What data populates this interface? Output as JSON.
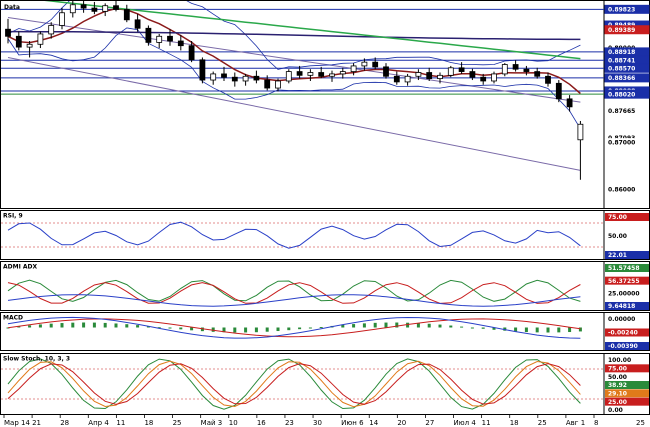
{
  "chart_data": {
    "type": "candlestick-multipanel",
    "x_tick_labels": [
      "Мар 14",
      "21",
      "28",
      "Апр 4",
      "11",
      "18",
      "25",
      "Май 3",
      "10",
      "16",
      "23",
      "30",
      "Июн 6",
      "14",
      "20",
      "27",
      "Июл 4",
      "11",
      "18",
      "25",
      "Авг 1",
      "8"
    ],
    "price": {
      "title": "Data",
      "price_labels": [
        {
          "text": "0.89823",
          "value": 0.89823,
          "color": "#1a2fa8"
        },
        {
          "text": "0.89489",
          "value": 0.89489,
          "color": "#1a2fa8"
        },
        {
          "text": "0.89389",
          "value": 0.89389,
          "color": "#c81e1e"
        },
        {
          "text": "0.89000",
          "value": 0.89,
          "color": "#ffffff"
        },
        {
          "text": "0.88918",
          "value": 0.88918,
          "color": "#1a2fa8"
        },
        {
          "text": "0.88741",
          "value": 0.88741,
          "color": "#1a2fa8"
        },
        {
          "text": "0.88570",
          "value": 0.8857,
          "color": "#1a2fa8"
        },
        {
          "text": "0.88366",
          "value": 0.88366,
          "color": "#1a2fa8"
        },
        {
          "text": "0.88088",
          "value": 0.88088,
          "color": "#1a2fa8"
        },
        {
          "text": "0.88020",
          "value": 0.8802,
          "color": "#1a2fa8"
        },
        {
          "text": "0.87665",
          "value": 0.87665,
          "color": "#ffffff"
        },
        {
          "text": "0.87093",
          "value": 0.87093,
          "color": "#ffffff"
        },
        {
          "text": "0.87000",
          "value": 0.87,
          "color": "#ffffff"
        },
        {
          "text": "0.86000",
          "value": 0.86,
          "color": "#ffffff"
        }
      ],
      "levels": [
        {
          "value": 0.89823,
          "color": "#1a2fa8"
        },
        {
          "value": 0.88918,
          "color": "#1a2fa8"
        },
        {
          "value": 0.88741,
          "color": "#1a2fa8"
        },
        {
          "value": 0.8857,
          "color": "#1a2fa8"
        },
        {
          "value": 0.88366,
          "color": "#1a2fa8"
        },
        {
          "value": 0.88088,
          "color": "#1a2fa8"
        },
        {
          "value": 0.8802,
          "color": "#2a8a3a"
        }
      ],
      "ylim": [
        0.856,
        0.9
      ],
      "candles": [
        {
          "o": 0.894,
          "h": 0.8962,
          "l": 0.891,
          "c": 0.8925
        },
        {
          "o": 0.8925,
          "h": 0.8935,
          "l": 0.8895,
          "c": 0.8902
        },
        {
          "o": 0.8902,
          "h": 0.8915,
          "l": 0.888,
          "c": 0.8908
        },
        {
          "o": 0.8908,
          "h": 0.8935,
          "l": 0.89,
          "c": 0.893
        },
        {
          "o": 0.893,
          "h": 0.8955,
          "l": 0.892,
          "c": 0.8948
        },
        {
          "o": 0.8948,
          "h": 0.8985,
          "l": 0.894,
          "c": 0.8975
        },
        {
          "o": 0.8975,
          "h": 0.9,
          "l": 0.8965,
          "c": 0.8992
        },
        {
          "o": 0.8992,
          "h": 0.9,
          "l": 0.8975,
          "c": 0.8985
        },
        {
          "o": 0.8985,
          "h": 0.8998,
          "l": 0.8972,
          "c": 0.8978
        },
        {
          "o": 0.8978,
          "h": 0.8995,
          "l": 0.8968,
          "c": 0.899
        },
        {
          "o": 0.899,
          "h": 0.9,
          "l": 0.8978,
          "c": 0.8982
        },
        {
          "o": 0.8982,
          "h": 0.8992,
          "l": 0.8955,
          "c": 0.896
        },
        {
          "o": 0.896,
          "h": 0.8972,
          "l": 0.8935,
          "c": 0.8942
        },
        {
          "o": 0.8942,
          "h": 0.8948,
          "l": 0.8905,
          "c": 0.8912
        },
        {
          "o": 0.8912,
          "h": 0.893,
          "l": 0.89,
          "c": 0.8925
        },
        {
          "o": 0.8925,
          "h": 0.894,
          "l": 0.8905,
          "c": 0.8915
        },
        {
          "o": 0.8915,
          "h": 0.8928,
          "l": 0.8895,
          "c": 0.8905
        },
        {
          "o": 0.8905,
          "h": 0.8915,
          "l": 0.887,
          "c": 0.8875
        },
        {
          "o": 0.8875,
          "h": 0.888,
          "l": 0.8825,
          "c": 0.8832
        },
        {
          "o": 0.8832,
          "h": 0.885,
          "l": 0.8822,
          "c": 0.8845
        },
        {
          "o": 0.8845,
          "h": 0.886,
          "l": 0.883,
          "c": 0.8838
        },
        {
          "o": 0.8838,
          "h": 0.8848,
          "l": 0.8818,
          "c": 0.883
        },
        {
          "o": 0.883,
          "h": 0.8845,
          "l": 0.882,
          "c": 0.884
        },
        {
          "o": 0.884,
          "h": 0.8852,
          "l": 0.8825,
          "c": 0.8832
        },
        {
          "o": 0.8832,
          "h": 0.8842,
          "l": 0.881,
          "c": 0.8815
        },
        {
          "o": 0.8815,
          "h": 0.8835,
          "l": 0.8808,
          "c": 0.883
        },
        {
          "o": 0.883,
          "h": 0.8855,
          "l": 0.8825,
          "c": 0.885
        },
        {
          "o": 0.885,
          "h": 0.8862,
          "l": 0.8835,
          "c": 0.8842
        },
        {
          "o": 0.8842,
          "h": 0.8855,
          "l": 0.883,
          "c": 0.8848
        },
        {
          "o": 0.8848,
          "h": 0.886,
          "l": 0.8836,
          "c": 0.884
        },
        {
          "o": 0.884,
          "h": 0.8852,
          "l": 0.8828,
          "c": 0.8845
        },
        {
          "o": 0.8845,
          "h": 0.8858,
          "l": 0.8835,
          "c": 0.885
        },
        {
          "o": 0.885,
          "h": 0.8868,
          "l": 0.8842,
          "c": 0.8862
        },
        {
          "o": 0.8862,
          "h": 0.8878,
          "l": 0.8852,
          "c": 0.887
        },
        {
          "o": 0.887,
          "h": 0.888,
          "l": 0.8855,
          "c": 0.886
        },
        {
          "o": 0.886,
          "h": 0.8868,
          "l": 0.8835,
          "c": 0.884
        },
        {
          "o": 0.884,
          "h": 0.885,
          "l": 0.8822,
          "c": 0.8828
        },
        {
          "o": 0.8828,
          "h": 0.8845,
          "l": 0.882,
          "c": 0.884
        },
        {
          "o": 0.884,
          "h": 0.8855,
          "l": 0.8832,
          "c": 0.8848
        },
        {
          "o": 0.8848,
          "h": 0.8858,
          "l": 0.883,
          "c": 0.8835
        },
        {
          "o": 0.8835,
          "h": 0.8848,
          "l": 0.8825,
          "c": 0.8842
        },
        {
          "o": 0.8842,
          "h": 0.8862,
          "l": 0.8838,
          "c": 0.8858
        },
        {
          "o": 0.8858,
          "h": 0.887,
          "l": 0.8845,
          "c": 0.885
        },
        {
          "o": 0.885,
          "h": 0.8856,
          "l": 0.8832,
          "c": 0.8838
        },
        {
          "o": 0.8838,
          "h": 0.8845,
          "l": 0.8822,
          "c": 0.883
        },
        {
          "o": 0.883,
          "h": 0.885,
          "l": 0.8825,
          "c": 0.8845
        },
        {
          "o": 0.8845,
          "h": 0.8868,
          "l": 0.884,
          "c": 0.8865
        },
        {
          "o": 0.8865,
          "h": 0.8874,
          "l": 0.885,
          "c": 0.8855
        },
        {
          "o": 0.8855,
          "h": 0.8862,
          "l": 0.8842,
          "c": 0.885
        },
        {
          "o": 0.885,
          "h": 0.8858,
          "l": 0.8835,
          "c": 0.884
        },
        {
          "o": 0.884,
          "h": 0.8848,
          "l": 0.8818,
          "c": 0.8825
        },
        {
          "o": 0.8825,
          "h": 0.8832,
          "l": 0.8785,
          "c": 0.8792
        },
        {
          "o": 0.8792,
          "h": 0.88,
          "l": 0.8765,
          "c": 0.8775
        },
        {
          "o": 0.8705,
          "h": 0.8745,
          "l": 0.862,
          "c": 0.8738
        }
      ]
    },
    "rsi": {
      "title": "RSI, 9",
      "labels": [
        {
          "text": "75.00",
          "color": "#c81e1e"
        },
        {
          "text": "50.00",
          "color": "#000000"
        },
        {
          "text": "22.01",
          "color": "#1a2fa8"
        }
      ]
    },
    "adx": {
      "title": "ADMI ADX",
      "labels": [
        {
          "text": "51.57458",
          "color": "#2a8a3a"
        },
        {
          "text": "56.37255",
          "color": "#c81e1e"
        },
        {
          "text": "25.00000",
          "color": "#000000"
        },
        {
          "text": "9.64818",
          "color": "#1a2fa8"
        }
      ]
    },
    "macd": {
      "title": "MACD",
      "labels": [
        {
          "text": "0.00000",
          "color": "#000000"
        },
        {
          "text": "-0.00240",
          "color": "#c81e1e"
        },
        {
          "text": "-0.00390",
          "color": "#1a2fa8"
        }
      ]
    },
    "stoch": {
      "title": "Slow Stoch, 10, 3, 3",
      "labels": [
        {
          "text": "100.00",
          "color": "#000000"
        },
        {
          "text": "75.00",
          "color": "#c81e1e"
        },
        {
          "text": "50.00",
          "color": "#000000"
        },
        {
          "text": "38.92",
          "color": "#2a8a3a"
        },
        {
          "text": "29.10",
          "color": "#e07a1a"
        },
        {
          "text": "25.00",
          "color": "#c81e1e"
        },
        {
          "text": "0.00",
          "color": "#000000"
        }
      ]
    },
    "corner_label": "25"
  }
}
